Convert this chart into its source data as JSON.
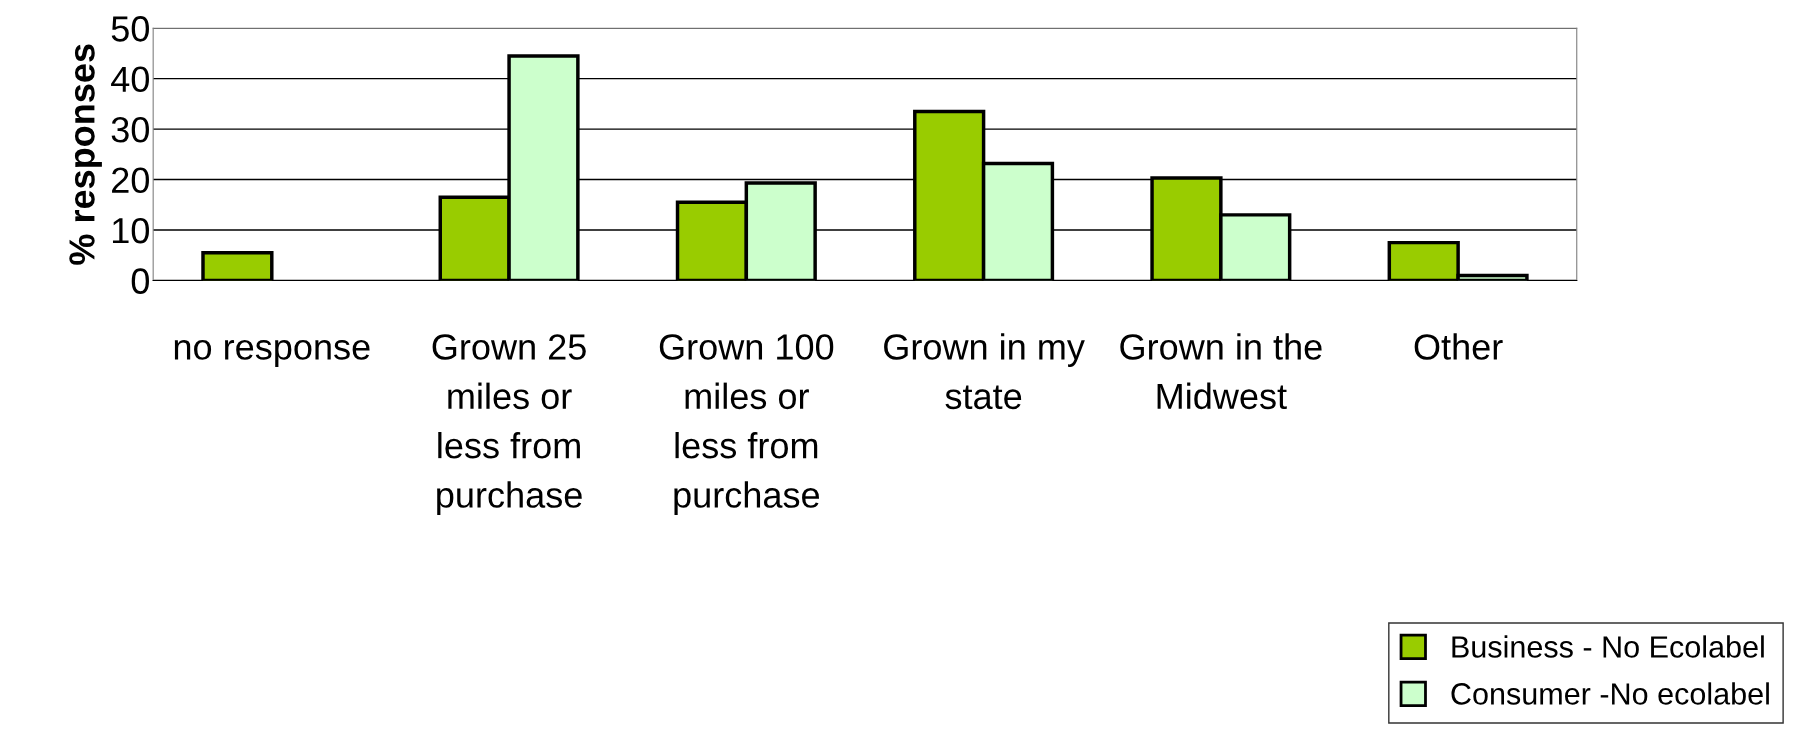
{
  "chart_data": {
    "type": "bar",
    "ylabel": "% responses",
    "categories": [
      "no response",
      "Grown 25 miles or less from purchase",
      "Grown 100 miles or less from purchase",
      "Grown in my state",
      "Grown in the Midwest",
      "Other"
    ],
    "series": [
      {
        "name": "Business - No Ecolabel",
        "color": "#99cc00",
        "values": [
          5.5,
          16.5,
          15.5,
          33.5,
          20.3,
          7.5
        ]
      },
      {
        "name": "Consumer -No ecolabel",
        "color": "#ccffcc",
        "values": [
          null,
          44.5,
          19.3,
          23.2,
          13,
          1
        ]
      }
    ],
    "ylim": [
      0,
      50
    ],
    "yticks": [
      0,
      10,
      20,
      30,
      40,
      50
    ],
    "grid": "y",
    "legend": "bottom right"
  }
}
